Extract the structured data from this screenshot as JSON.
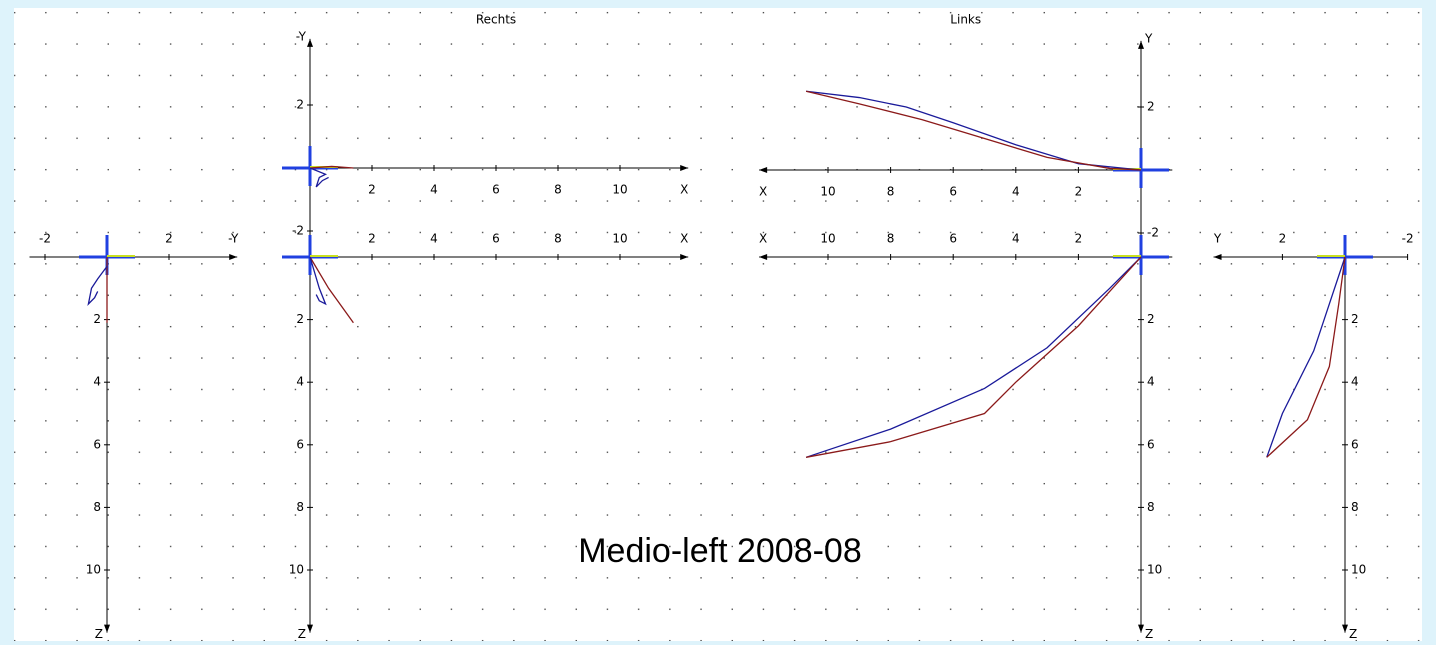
{
  "chart_data": [
    {
      "type": "line",
      "x_label": "-Y",
      "y_label": "Z",
      "xlim": [
        -2.5,
        4.2
      ],
      "ylim": [
        -0.6,
        12
      ],
      "xticks": [
        -2,
        2
      ],
      "yticks": [
        2,
        4,
        6,
        8,
        10
      ],
      "series": [
        {
          "color": "#8b1a1a",
          "x": [
            0,
            0,
            0
          ],
          "values": [
            0,
            1.0,
            2.1
          ]
        },
        {
          "color": "#1a1a9a",
          "x": [
            0,
            -0.3,
            -0.5,
            -0.6,
            -0.4,
            -0.3
          ],
          "values": [
            0.3,
            0.7,
            1.0,
            1.5,
            1.3,
            1.1
          ]
        }
      ]
    },
    {
      "type": "line",
      "title": "Rechts",
      "x_label": "X",
      "y_label": "-Y",
      "xlim": [
        -0.2,
        12.2
      ],
      "ylim": [
        -2.2,
        4.1
      ],
      "xticks": [
        2,
        4,
        6,
        8,
        10
      ],
      "yticks": [
        -2,
        2
      ],
      "series": [
        {
          "color": "#8b1a1a",
          "x": [
            0,
            0.7,
            1.4
          ],
          "values": [
            0,
            0.05,
            0
          ]
        },
        {
          "color": "#1a1a9a",
          "x": [
            0,
            0.5,
            0.3,
            0.2,
            0.4,
            0.6
          ],
          "values": [
            0,
            -0.2,
            -0.3,
            -0.6,
            -0.4,
            -0.3
          ]
        }
      ]
    },
    {
      "type": "line",
      "x_label": "X",
      "y_label": "Z",
      "xlim": [
        -0.2,
        12.2
      ],
      "ylim": [
        -0.6,
        12
      ],
      "xticks": [
        2,
        4,
        6,
        8,
        10
      ],
      "yticks": [
        2,
        4,
        6,
        8,
        10
      ],
      "series": [
        {
          "color": "#8b1a1a",
          "x": [
            0,
            0.6,
            1.4
          ],
          "values": [
            0,
            1.0,
            2.1
          ]
        },
        {
          "color": "#1a1a9a",
          "x": [
            0,
            0.3,
            0.5,
            0.3,
            0.2
          ],
          "values": [
            0,
            1.0,
            1.5,
            1.4,
            1.2
          ]
        }
      ]
    },
    {
      "type": "line",
      "title": "Links",
      "x_label": "X",
      "y_label": "Y",
      "xlim": [
        -1,
        12.2
      ],
      "ylim": [
        -2.2,
        4.1
      ],
      "xticks": [
        2,
        4,
        6,
        8,
        10
      ],
      "yticks": [
        -2,
        2
      ],
      "series": [
        {
          "color": "#1a1a9a",
          "x": [
            10.7,
            9,
            7.5,
            6,
            4,
            2,
            0
          ],
          "values": [
            2.5,
            2.3,
            2.0,
            1.5,
            0.8,
            0.2,
            0
          ]
        },
        {
          "color": "#8b1a1a",
          "x": [
            10.7,
            9,
            7,
            5,
            3,
            1,
            0
          ],
          "values": [
            2.5,
            2.1,
            1.6,
            1.0,
            0.4,
            0.05,
            0
          ]
        }
      ]
    },
    {
      "type": "line",
      "x_label": "X",
      "y_label": "Z",
      "xlim": [
        -1,
        12.2
      ],
      "ylim": [
        -0.6,
        12
      ],
      "xticks": [
        2,
        4,
        6,
        8,
        10
      ],
      "yticks": [
        2,
        4,
        6,
        8,
        10
      ],
      "series": [
        {
          "color": "#1a1a9a",
          "x": [
            10.7,
            8,
            5,
            3,
            1,
            0
          ],
          "values": [
            6.4,
            5.5,
            4.2,
            2.9,
            1.0,
            0
          ]
        },
        {
          "color": "#8b1a1a",
          "x": [
            10.7,
            8,
            5,
            4,
            2,
            0
          ],
          "values": [
            6.4,
            5.9,
            5.0,
            4.0,
            2.2,
            0
          ]
        }
      ]
    },
    {
      "type": "line",
      "x_label": "Y",
      "y_label": "Z",
      "xlim": [
        -2,
        4.2
      ],
      "ylim": [
        -0.6,
        12
      ],
      "xticks": [
        -2,
        2
      ],
      "yticks": [
        2,
        4,
        6,
        8,
        10
      ],
      "series": [
        {
          "color": "#1a1a9a",
          "x": [
            2.5,
            2,
            1,
            0.5,
            0
          ],
          "values": [
            6.4,
            5,
            3,
            1.5,
            0
          ]
        },
        {
          "color": "#8b1a1a",
          "x": [
            2.5,
            1.2,
            0.5,
            0.2,
            0
          ],
          "values": [
            6.4,
            5.2,
            3.5,
            1.5,
            0
          ]
        }
      ]
    }
  ],
  "caption": "Medio-left  2008-08"
}
